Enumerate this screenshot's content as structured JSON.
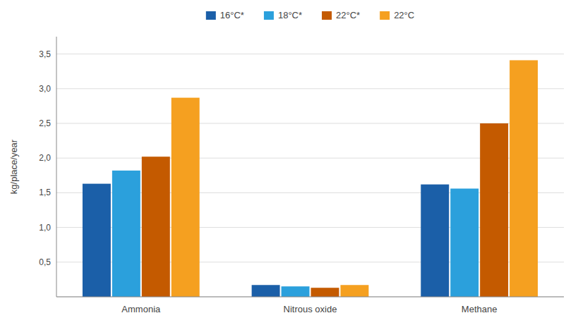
{
  "chart_data": {
    "type": "bar",
    "categories": [
      "Ammonia",
      "Nitrous oxide",
      "Methane"
    ],
    "series": [
      {
        "name": "16°C*",
        "color": "#1b5fa8",
        "values": [
          1.63,
          0.17,
          1.62
        ]
      },
      {
        "name": "18°C*",
        "color": "#2ba0dc",
        "values": [
          1.82,
          0.15,
          1.56
        ]
      },
      {
        "name": "22°C*",
        "color": "#c45a00",
        "values": [
          2.02,
          0.13,
          2.5
        ]
      },
      {
        "name": "22°C",
        "color": "#f5a020",
        "values": [
          2.87,
          0.17,
          3.41
        ]
      }
    ],
    "ylabel": "kg/place/year",
    "ylim": [
      0,
      3.75
    ],
    "yticks": [
      {
        "value": 0,
        "label": ""
      },
      {
        "value": 0.5,
        "label": "0,5"
      },
      {
        "value": 1.0,
        "label": "1,0"
      },
      {
        "value": 1.5,
        "label": "1,5"
      },
      {
        "value": 2.0,
        "label": "2,0"
      },
      {
        "value": 2.5,
        "label": "2,5"
      },
      {
        "value": 3.0,
        "label": "3,0"
      },
      {
        "value": 3.5,
        "label": "3,5"
      }
    ],
    "grid": true,
    "legend": "top"
  }
}
